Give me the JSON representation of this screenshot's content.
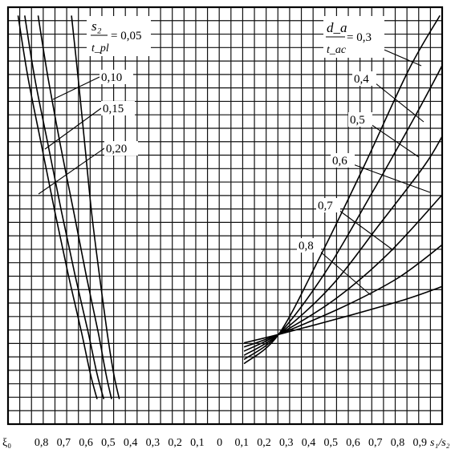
{
  "chart_data": {
    "type": "line",
    "grid": true,
    "x_axis": {
      "left_symbol": "ξ₀",
      "right_label": "s₁/s₂",
      "tick_labels": [
        "0,8",
        "0,7",
        "0,6",
        "0,5",
        "0,4",
        "0,3",
        "0,2",
        "0,1",
        "0",
        "0,1",
        "0,2",
        "0,3",
        "0,4",
        "0,5",
        "0,6",
        "0,7",
        "0,8",
        "0,9"
      ],
      "tick_values": [
        -0.8,
        -0.7,
        -0.6,
        -0.5,
        -0.4,
        -0.3,
        -0.2,
        -0.1,
        0,
        0.1,
        0.2,
        0.3,
        0.4,
        0.5,
        0.6,
        0.7,
        0.8,
        0.9
      ],
      "range": [
        -0.95,
        1.0
      ]
    },
    "y_axis": {
      "range": [
        0,
        1
      ],
      "tick_labels": []
    },
    "left_family": {
      "legend": {
        "num": "s₂",
        "den": "t_pl",
        "equals": "= 0,05"
      },
      "series": [
        {
          "label": "",
          "x": [
            -0.905,
            -0.86,
            -0.8,
            -0.74,
            -0.68,
            -0.62,
            -0.58,
            -0.55
          ],
          "y": [
            0.98,
            0.83,
            0.67,
            0.51,
            0.36,
            0.22,
            0.12,
            0.06
          ]
        },
        {
          "label": "0,10",
          "x": [
            -0.875,
            -0.83,
            -0.77,
            -0.71,
            -0.65,
            -0.59,
            -0.55,
            -0.52
          ],
          "y": [
            0.98,
            0.83,
            0.67,
            0.51,
            0.36,
            0.22,
            0.12,
            0.06
          ]
        },
        {
          "label": "0,15",
          "x": [
            -0.815,
            -0.77,
            -0.715,
            -0.655,
            -0.6,
            -0.545,
            -0.51,
            -0.485
          ],
          "y": [
            0.98,
            0.83,
            0.67,
            0.51,
            0.36,
            0.22,
            0.12,
            0.06
          ]
        },
        {
          "label": "0,20",
          "x": [
            -0.665,
            -0.635,
            -0.605,
            -0.575,
            -0.54,
            -0.505,
            -0.475,
            -0.45
          ],
          "y": [
            0.98,
            0.83,
            0.67,
            0.51,
            0.36,
            0.22,
            0.12,
            0.06
          ]
        }
      ]
    },
    "right_family": {
      "legend": {
        "num": "d_a",
        "den": "t_ac",
        "equals": "= 0,3"
      },
      "series": [
        {
          "label": "0,3",
          "x": [
            0.11,
            0.265,
            0.45,
            0.65,
            0.85,
            0.99
          ],
          "y": [
            0.145,
            0.215,
            0.4,
            0.62,
            0.85,
            0.98
          ]
        },
        {
          "label": "0,4",
          "x": [
            0.11,
            0.265,
            0.47,
            0.68,
            0.88,
            1.0
          ],
          "y": [
            0.155,
            0.215,
            0.36,
            0.55,
            0.74,
            0.86
          ]
        },
        {
          "label": "0,5",
          "x": [
            0.11,
            0.265,
            0.5,
            0.72,
            0.92,
            1.0
          ],
          "y": [
            0.165,
            0.215,
            0.33,
            0.48,
            0.62,
            0.69
          ]
        },
        {
          "label": "0,6",
          "x": [
            0.11,
            0.265,
            0.52,
            0.76,
            1.0
          ],
          "y": [
            0.175,
            0.215,
            0.3,
            0.41,
            0.55
          ]
        },
        {
          "label": "0,7",
          "x": [
            0.11,
            0.265,
            0.55,
            0.8,
            1.0
          ],
          "y": [
            0.185,
            0.215,
            0.28,
            0.35,
            0.43
          ]
        },
        {
          "label": "0,8",
          "x": [
            0.11,
            0.265,
            0.58,
            0.84,
            1.0
          ],
          "y": [
            0.195,
            0.215,
            0.26,
            0.3,
            0.33
          ]
        }
      ]
    }
  }
}
